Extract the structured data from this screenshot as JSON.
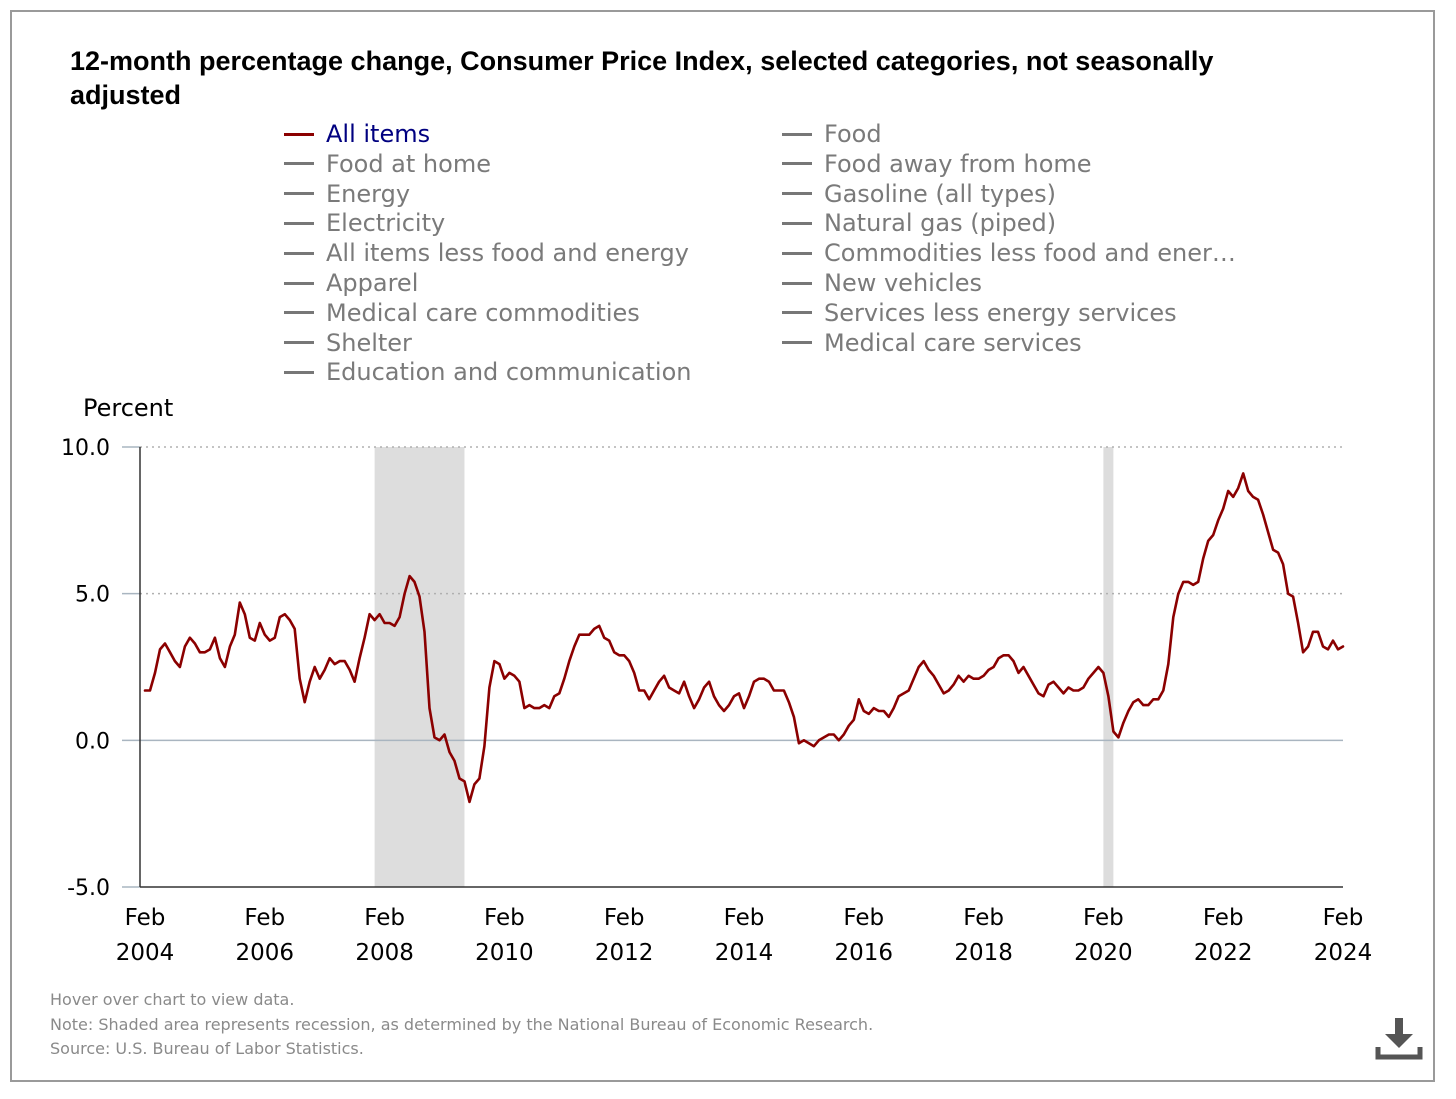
{
  "title": "12-month percentage change, Consumer Price Index, selected categories, not seasonally adjusted",
  "legend": {
    "active_color": "#8b0000",
    "inactive_color": "#777777",
    "active_text_color": "#000080",
    "items": [
      {
        "label": "All items",
        "active": true
      },
      {
        "label": "Food",
        "active": false
      },
      {
        "label": "Food at home",
        "active": false
      },
      {
        "label": "Food away from home",
        "active": false
      },
      {
        "label": "Energy",
        "active": false
      },
      {
        "label": "Gasoline (all types)",
        "active": false
      },
      {
        "label": "Electricity",
        "active": false
      },
      {
        "label": "Natural gas (piped)",
        "active": false
      },
      {
        "label": "All items less food and energy",
        "active": false
      },
      {
        "label": "Commodities less food and ener…",
        "active": false
      },
      {
        "label": "Apparel",
        "active": false
      },
      {
        "label": "New vehicles",
        "active": false
      },
      {
        "label": "Medical care commodities",
        "active": false
      },
      {
        "label": "Services less energy services",
        "active": false
      },
      {
        "label": "Shelter",
        "active": false
      },
      {
        "label": "Medical care services",
        "active": false
      },
      {
        "label": "Education and communication",
        "active": false
      }
    ]
  },
  "chart_data": {
    "type": "line",
    "title": "12-month percentage change, Consumer Price Index, selected categories, not seasonally adjusted",
    "ylabel": "Percent",
    "xlabel": "",
    "ylim": [
      -5.0,
      10.0
    ],
    "yticks": [
      "10.0",
      "5.0",
      "0.0",
      "-5.0"
    ],
    "ytick_values": [
      10,
      5,
      0,
      -5
    ],
    "xlim": [
      "2004-01",
      "2024-02"
    ],
    "xticks": [
      {
        "month": "Feb",
        "year": "2004",
        "date": "2004-02"
      },
      {
        "month": "Feb",
        "year": "2006",
        "date": "2006-02"
      },
      {
        "month": "Feb",
        "year": "2008",
        "date": "2008-02"
      },
      {
        "month": "Feb",
        "year": "2010",
        "date": "2010-02"
      },
      {
        "month": "Feb",
        "year": "2012",
        "date": "2012-02"
      },
      {
        "month": "Feb",
        "year": "2014",
        "date": "2014-02"
      },
      {
        "month": "Feb",
        "year": "2016",
        "date": "2016-02"
      },
      {
        "month": "Feb",
        "year": "2018",
        "date": "2018-02"
      },
      {
        "month": "Feb",
        "year": "2020",
        "date": "2020-02"
      },
      {
        "month": "Feb",
        "year": "2022",
        "date": "2022-02"
      },
      {
        "month": "Feb",
        "year": "2024",
        "date": "2024-02"
      }
    ],
    "gridlines": "dotted at 5.0 and 10.0",
    "recessions": [
      {
        "start": "2007-12",
        "end": "2009-06"
      },
      {
        "start": "2020-02",
        "end": "2020-04"
      }
    ],
    "recession_color": "#dddddd",
    "series": [
      {
        "name": "All items",
        "color": "#8b0000",
        "start": "2004-02",
        "values": [
          1.7,
          1.7,
          2.3,
          3.1,
          3.3,
          3.0,
          2.7,
          2.5,
          3.2,
          3.5,
          3.3,
          3.0,
          3.0,
          3.1,
          3.5,
          2.8,
          2.5,
          3.2,
          3.6,
          4.7,
          4.3,
          3.5,
          3.4,
          4.0,
          3.6,
          3.4,
          3.5,
          4.2,
          4.3,
          4.1,
          3.8,
          2.1,
          1.3,
          2.0,
          2.5,
          2.1,
          2.4,
          2.8,
          2.6,
          2.7,
          2.7,
          2.4,
          2.0,
          2.8,
          3.5,
          4.3,
          4.1,
          4.3,
          4.0,
          4.0,
          3.9,
          4.2,
          5.0,
          5.6,
          5.4,
          4.9,
          3.7,
          1.1,
          0.1,
          0.0,
          0.2,
          -0.4,
          -0.7,
          -1.3,
          -1.4,
          -2.1,
          -1.5,
          -1.3,
          -0.2,
          1.8,
          2.7,
          2.6,
          2.1,
          2.3,
          2.2,
          2.0,
          1.1,
          1.2,
          1.1,
          1.1,
          1.2,
          1.1,
          1.5,
          1.6,
          2.1,
          2.7,
          3.2,
          3.6,
          3.6,
          3.6,
          3.8,
          3.9,
          3.5,
          3.4,
          3.0,
          2.9,
          2.9,
          2.7,
          2.3,
          1.7,
          1.7,
          1.4,
          1.7,
          2.0,
          2.2,
          1.8,
          1.7,
          1.6,
          2.0,
          1.5,
          1.1,
          1.4,
          1.8,
          2.0,
          1.5,
          1.2,
          1.0,
          1.2,
          1.5,
          1.6,
          1.1,
          1.5,
          2.0,
          2.1,
          2.1,
          2.0,
          1.7,
          1.7,
          1.7,
          1.3,
          0.8,
          -0.1,
          0.0,
          -0.1,
          -0.2,
          0.0,
          0.1,
          0.2,
          0.2,
          0.0,
          0.2,
          0.5,
          0.7,
          1.4,
          1.0,
          0.9,
          1.1,
          1.0,
          1.0,
          0.8,
          1.1,
          1.5,
          1.6,
          1.7,
          2.1,
          2.5,
          2.7,
          2.4,
          2.2,
          1.9,
          1.6,
          1.7,
          1.9,
          2.2,
          2.0,
          2.2,
          2.1,
          2.1,
          2.2,
          2.4,
          2.5,
          2.8,
          2.9,
          2.9,
          2.7,
          2.3,
          2.5,
          2.2,
          1.9,
          1.6,
          1.5,
          1.9,
          2.0,
          1.8,
          1.6,
          1.8,
          1.7,
          1.7,
          1.8,
          2.1,
          2.3,
          2.5,
          2.3,
          1.5,
          0.3,
          0.1,
          0.6,
          1.0,
          1.3,
          1.4,
          1.2,
          1.2,
          1.4,
          1.4,
          1.7,
          2.6,
          4.2,
          5.0,
          5.4,
          5.4,
          5.3,
          5.4,
          6.2,
          6.8,
          7.0,
          7.5,
          7.9,
          8.5,
          8.3,
          8.6,
          9.1,
          8.5,
          8.3,
          8.2,
          7.7,
          7.1,
          6.5,
          6.4,
          6.0,
          5.0,
          4.9,
          4.0,
          3.0,
          3.2,
          3.7,
          3.7,
          3.2,
          3.1,
          3.4,
          3.1,
          3.2
        ]
      }
    ]
  },
  "notes": {
    "hover": "Hover over chart to view data.",
    "note": "Note: Shaded area represents recession, as determined by the National Bureau of Economic Research.",
    "source": "Source: U.S. Bureau of Labor Statistics."
  },
  "download_icon": "download-icon"
}
